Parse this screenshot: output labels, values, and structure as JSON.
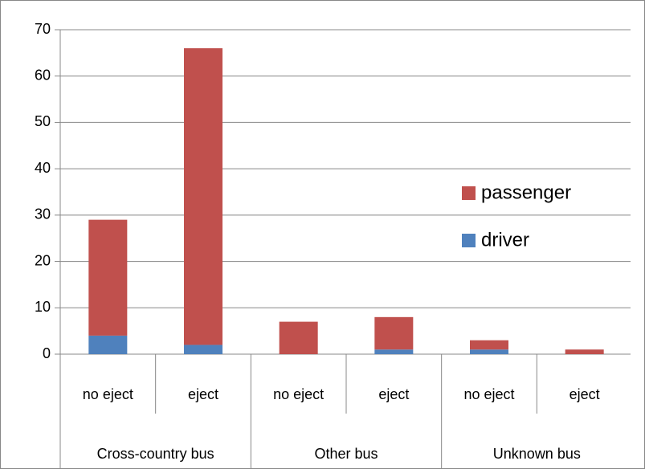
{
  "chart_data": {
    "type": "stacked_bar",
    "groups": [
      {
        "name": "Cross-country bus",
        "categories": [
          "no eject",
          "eject"
        ]
      },
      {
        "name": "Other bus",
        "categories": [
          "no eject",
          "eject"
        ]
      },
      {
        "name": "Unknown bus",
        "categories": [
          "no eject",
          "eject"
        ]
      }
    ],
    "series": [
      {
        "name": "driver",
        "color": "#4f81bd",
        "values": [
          4,
          2,
          0,
          1,
          1,
          0
        ]
      },
      {
        "name": "passenger",
        "color": "#c0504d",
        "values": [
          25,
          64,
          7,
          7,
          2,
          1
        ]
      }
    ],
    "ylim": [
      0,
      70
    ],
    "yticks": [
      0,
      10,
      20,
      30,
      40,
      50,
      60,
      70
    ],
    "grid": true,
    "legend": "right"
  }
}
